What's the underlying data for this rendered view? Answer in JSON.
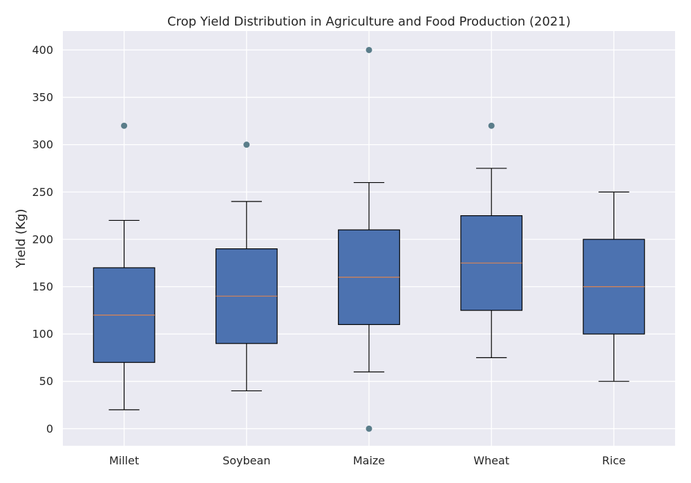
{
  "chart_data": {
    "type": "box",
    "title": "Crop Yield Distribution in Agriculture and Food Production (2021)",
    "xlabel": "",
    "ylabel": "Yield (Kg)",
    "ylim": [
      -18,
      420
    ],
    "yticks": [
      0,
      50,
      100,
      150,
      200,
      250,
      300,
      350,
      400
    ],
    "grid": true,
    "categories": [
      "Millet",
      "Soybean",
      "Maize",
      "Wheat",
      "Rice"
    ],
    "boxes": [
      {
        "min": 20,
        "q1": 70,
        "median": 120,
        "q3": 170,
        "max": 220,
        "outliers": [
          320
        ]
      },
      {
        "min": 40,
        "q1": 90,
        "median": 140,
        "q3": 190,
        "max": 240,
        "outliers": [
          300
        ]
      },
      {
        "min": 60,
        "q1": 110,
        "median": 160,
        "q3": 210,
        "max": 260,
        "outliers": [
          0,
          400
        ]
      },
      {
        "min": 75,
        "q1": 125,
        "median": 175,
        "q3": 225,
        "max": 275,
        "outliers": [
          320
        ]
      },
      {
        "min": 50,
        "q1": 100,
        "median": 150,
        "q3": 200,
        "max": 250,
        "outliers": []
      }
    ],
    "colors": {
      "background": "#EAEAF2",
      "grid": "#FFFFFF",
      "box_fill": "#4C72B0",
      "box_edge": "#000000",
      "median": "#DD8452",
      "outlier": "#5A7D8A",
      "text": "#262626"
    }
  }
}
